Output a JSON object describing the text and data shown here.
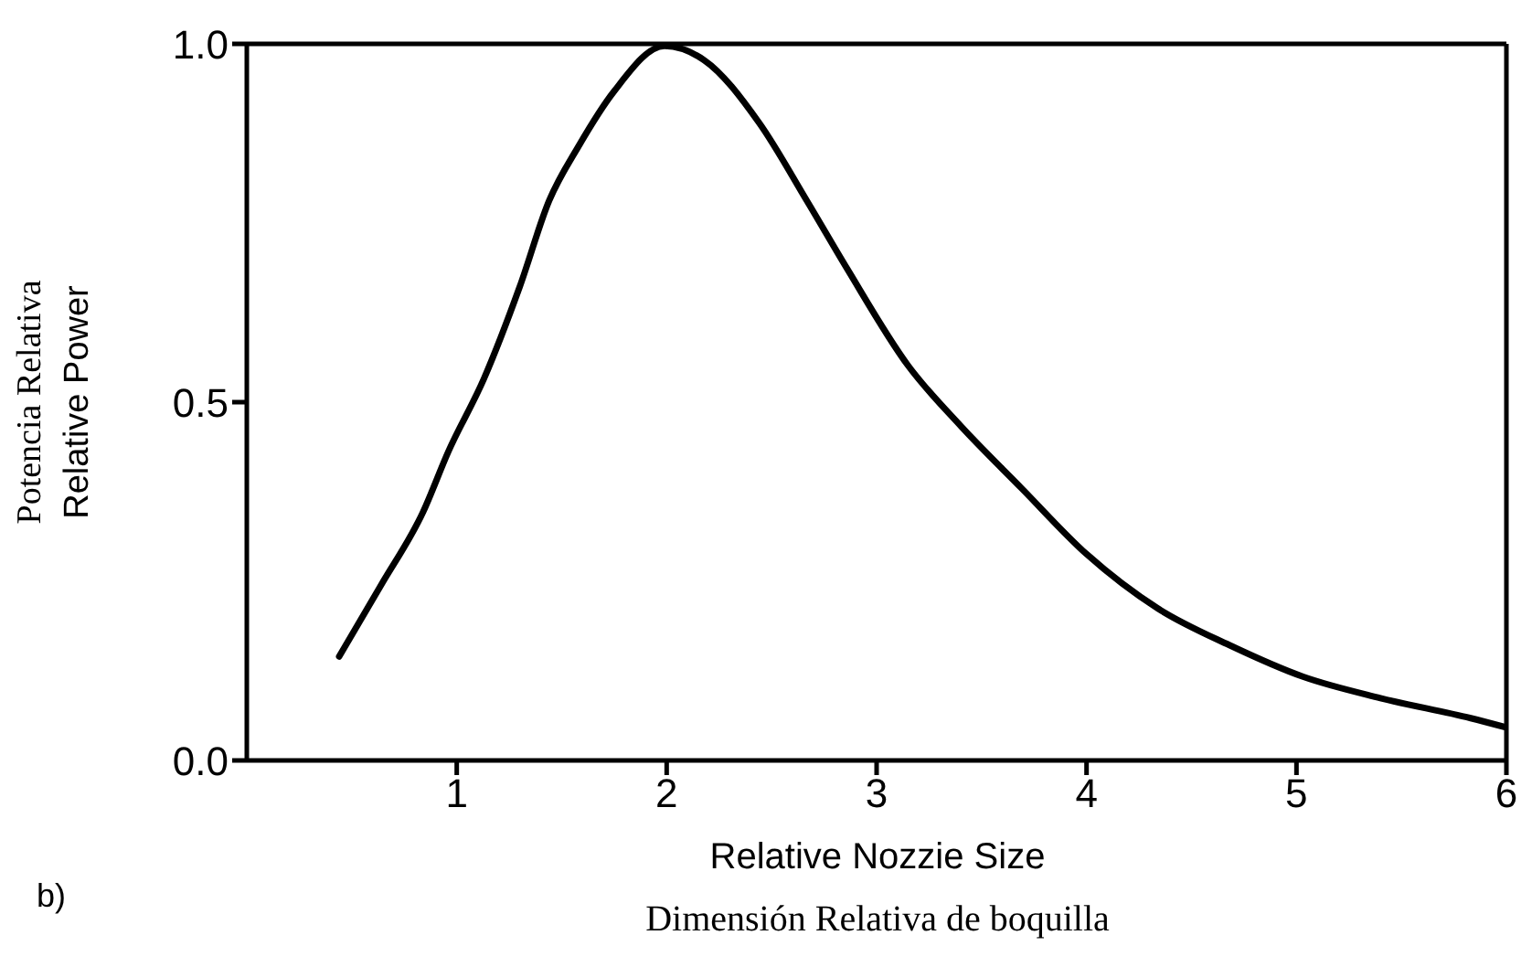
{
  "chart_data": {
    "type": "line",
    "xlabel": "Relative Nozzie Size\nDimensión Relativa de boquilla",
    "ylabel": "Potencia Relativa\nRelative Power",
    "annotations": [
      "b)"
    ],
    "xlim": [
      0,
      6
    ],
    "xticks": [
      1,
      2,
      3,
      4,
      5,
      6
    ],
    "ylim": [
      0,
      1
    ],
    "yticks": [
      {
        "value": 0,
        "label": "0.0"
      },
      {
        "value": 0.5,
        "label": "0.5"
      },
      {
        "value": 1,
        "label": "1.0"
      }
    ],
    "marker": "none",
    "line_style": "solid",
    "series": [
      {
        "color": "#000000",
        "x": [
          0.44,
          0.64,
          0.84,
          0.96,
          1.13,
          1.3,
          1.44,
          1.58,
          1.75,
          1.99,
          2.18,
          2.44,
          2.67,
          2.86,
          3.15,
          3.4,
          3.69,
          4.0,
          4.34,
          4.68,
          5.03,
          5.4,
          5.83,
          6.0
        ],
        "values": [
          0.145,
          0.245,
          0.347,
          0.431,
          0.533,
          0.661,
          0.781,
          0.857,
          0.934,
          0.997,
          0.977,
          0.89,
          0.78,
          0.686,
          0.551,
          0.467,
          0.38,
          0.288,
          0.212,
          0.161,
          0.117,
          0.087,
          0.059,
          0.046
        ]
      }
    ]
  }
}
